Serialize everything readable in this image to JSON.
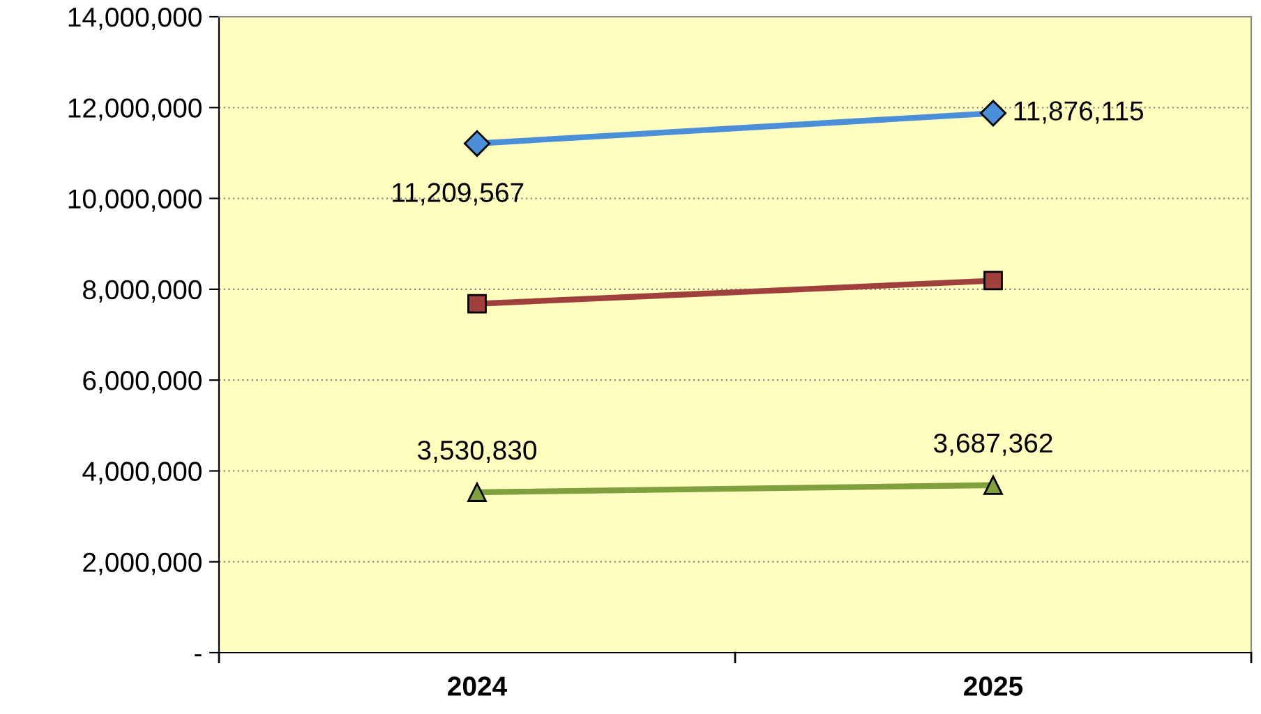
{
  "chart_data": {
    "type": "line",
    "categories": [
      "2024",
      "2025"
    ],
    "series": [
      {
        "color": "#4a8fd8",
        "marker": "diamond",
        "values": [
          11209567,
          11876115
        ],
        "value_labels": [
          "11,209,567",
          "11,876,115"
        ]
      },
      {
        "color": "#a0403c",
        "marker": "square",
        "values": [
          7680000,
          8190000
        ]
      },
      {
        "color": "#80a040",
        "marker": "triangle",
        "values": [
          3530830,
          3687362
        ],
        "value_labels": [
          "3,530,830",
          "3,687,362"
        ]
      }
    ],
    "ylim": [
      0,
      14000000
    ],
    "yticks": [
      {
        "value": 0,
        "label": "-"
      },
      {
        "value": 2000000,
        "label": "2,000,000"
      },
      {
        "value": 4000000,
        "label": "4,000,000"
      },
      {
        "value": 6000000,
        "label": "6,000,000"
      },
      {
        "value": 8000000,
        "label": "8,000,000"
      },
      {
        "value": 10000000,
        "label": "10,000,000"
      },
      {
        "value": 12000000,
        "label": "12,000,000"
      },
      {
        "value": 14000000,
        "label": "14,000,000"
      }
    ],
    "grid": "y",
    "legend": false
  }
}
